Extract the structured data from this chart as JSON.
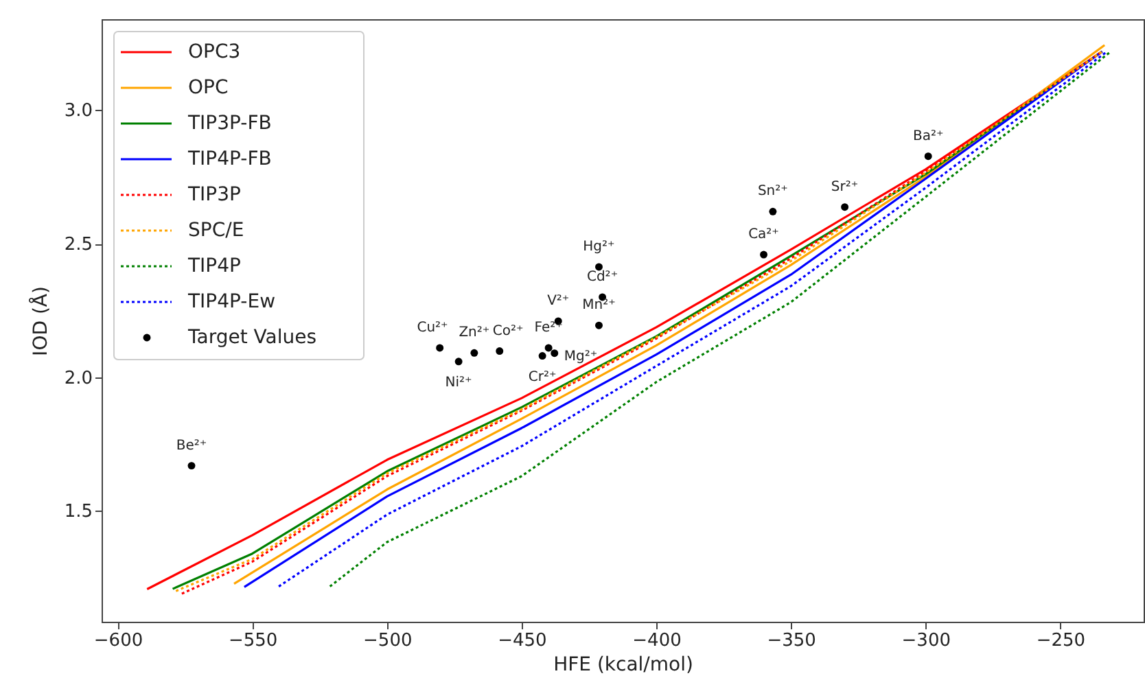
{
  "chart_data": {
    "type": "line",
    "xlabel": "HFE (kcal/mol)",
    "ylabel": "IOD (Å)",
    "xlim": [
      -606,
      -219
    ],
    "ylim": [
      1.085,
      3.34
    ],
    "xticks": [
      -600,
      -550,
      -500,
      -450,
      -400,
      -350,
      -300,
      -250
    ],
    "yticks": [
      {
        "value": 1.5,
        "label": "1.5"
      },
      {
        "value": 2,
        "label": "2.0"
      },
      {
        "value": 2.5,
        "label": "2.5"
      },
      {
        "value": 3,
        "label": "3.0"
      }
    ],
    "legend": "top left",
    "grid": false,
    "series": [
      {
        "name": "OPC3",
        "color": "#ff0000",
        "line_style": "solid",
        "x": [
          -589.1,
          -550,
          -500,
          -450,
          -400,
          -350,
          -300,
          -234.4
        ],
        "values": [
          1.207,
          1.409,
          1.691,
          1.922,
          2.187,
          2.478,
          2.778,
          3.219
        ]
      },
      {
        "name": "OPC",
        "color": "#ffa500",
        "line_style": "solid",
        "x": [
          -556.8,
          -500,
          -450,
          -400,
          -350,
          -300,
          -233.5
        ],
        "values": [
          1.227,
          1.58,
          1.845,
          2.119,
          2.42,
          2.75,
          3.243
        ]
      },
      {
        "name": "TIP3P-FB",
        "color": "#008000",
        "line_style": "solid",
        "x": [
          -579.6,
          -550,
          -500,
          -450,
          -400,
          -350,
          -300,
          -234.4
        ],
        "values": [
          1.208,
          1.34,
          1.648,
          1.888,
          2.153,
          2.454,
          2.76,
          3.219
        ]
      },
      {
        "name": "TIP4P-FB",
        "color": "#0000ff",
        "line_style": "solid",
        "x": [
          -553,
          -500,
          -450,
          -400,
          -350,
          -300,
          -234.4
        ],
        "values": [
          1.215,
          1.554,
          1.81,
          2.085,
          2.384,
          2.743,
          3.219
        ]
      },
      {
        "name": "TIP3P",
        "color": "#ff0000",
        "line_style": "dotted",
        "x": [
          -576.2,
          -550,
          -500,
          -450,
          -400,
          -350,
          -300,
          -234.4
        ],
        "values": [
          1.19,
          1.31,
          1.63,
          1.875,
          2.145,
          2.445,
          2.77,
          3.219
        ]
      },
      {
        "name": "SPC/E",
        "color": "#ffa500",
        "line_style": "dotted",
        "x": [
          -578.4,
          -550,
          -500,
          -450,
          -400,
          -350,
          -300,
          -234.4
        ],
        "values": [
          1.2,
          1.32,
          1.64,
          1.88,
          2.15,
          2.435,
          2.765,
          3.219
        ]
      },
      {
        "name": "TIP4P",
        "color": "#008000",
        "line_style": "dotted",
        "x": [
          -521.2,
          -500,
          -450,
          -400,
          -350,
          -300,
          -231.8
        ],
        "values": [
          1.217,
          1.383,
          1.63,
          1.982,
          2.281,
          2.675,
          3.214
        ]
      },
      {
        "name": "TIP4P-Ew",
        "color": "#0000ff",
        "line_style": "dotted",
        "x": [
          -540.2,
          -500,
          -450,
          -400,
          -350,
          -300,
          -233
        ],
        "values": [
          1.217,
          1.486,
          1.742,
          2.042,
          2.341,
          2.709,
          3.216
        ]
      },
      {
        "name": "Target Values",
        "type": "scatter",
        "marker": "circle",
        "color": "#000000",
        "x": [
          -572.6,
          -480.4,
          -473.4,
          -467.6,
          -458.2,
          -442.3,
          -440,
          -437.8,
          -436.4,
          -421.3,
          -420,
          -421.3,
          -360.1,
          -356.7,
          -330,
          -299
        ],
        "values": [
          1.669,
          2.11,
          2.059,
          2.091,
          2.098,
          2.08,
          2.11,
          2.09,
          2.21,
          2.413,
          2.3,
          2.194,
          2.459,
          2.62,
          2.637,
          2.827
        ]
      }
    ],
    "annotations": [
      {
        "text": "Be²⁺",
        "x": -572.6,
        "y": 1.669
      },
      {
        "text": "Cu²⁺",
        "x": -480.4,
        "y": 2.11
      },
      {
        "text": "Ni²⁺",
        "x": -473.4,
        "y": 2.059
      },
      {
        "text": "Zn²⁺",
        "x": -467.6,
        "y": 2.091
      },
      {
        "text": "Co²⁺",
        "x": -458.2,
        "y": 2.098
      },
      {
        "text": "Cr²⁺",
        "x": -442.3,
        "y": 2.08
      },
      {
        "text": "Fe²⁺",
        "x": -440,
        "y": 2.11
      },
      {
        "text": "Mg²⁺",
        "x": -437.8,
        "y": 2.09
      },
      {
        "text": "V²⁺",
        "x": -436.4,
        "y": 2.21
      },
      {
        "text": "Hg²⁺",
        "x": -421.3,
        "y": 2.413
      },
      {
        "text": "Cd²⁺",
        "x": -420,
        "y": 2.3
      },
      {
        "text": "Mn²⁺",
        "x": -421.3,
        "y": 2.194
      },
      {
        "text": "Ca²⁺",
        "x": -360.1,
        "y": 2.459
      },
      {
        "text": "Sn²⁺",
        "x": -356.7,
        "y": 2.62
      },
      {
        "text": "Sr²⁺",
        "x": -330,
        "y": 2.637
      },
      {
        "text": "Ba²⁺",
        "x": -299,
        "y": 2.827
      }
    ]
  }
}
